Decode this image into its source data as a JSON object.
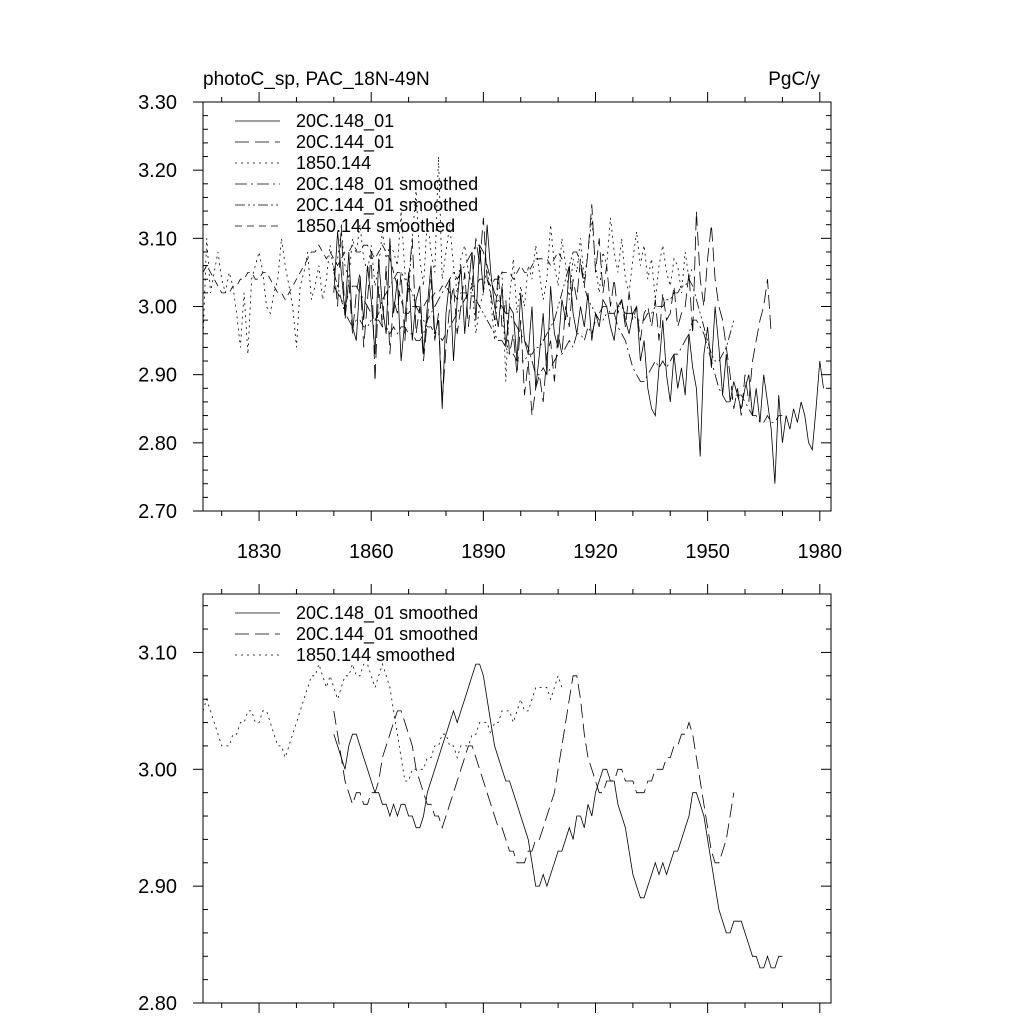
{
  "chart_data": [
    {
      "type": "line",
      "title_left": "photoC_sp, PAC_18N-49N",
      "title_right": "PgC/y",
      "xlim": [
        1815,
        1983
      ],
      "ylim": [
        2.7,
        3.3
      ],
      "xticks": [
        1830,
        1860,
        1890,
        1920,
        1950,
        1980
      ],
      "yticks": [
        2.7,
        2.8,
        2.9,
        3.0,
        3.1,
        3.2,
        3.3
      ],
      "ytick_labels": [
        "2.70",
        "2.80",
        "2.90",
        "3.00",
        "3.10",
        "3.20",
        "3.30"
      ],
      "series": [
        {
          "name": "20C.148_01",
          "style": "solid",
          "x0": 1850,
          "values": [
            3.02,
            3.11,
            3.05,
            2.99,
            3.08,
            2.97,
            2.95,
            3.04,
            2.98,
            3.06,
            3.01,
            2.93,
            3.07,
            3.0,
            2.96,
            3.1,
            2.99,
            3.04,
            2.92,
            2.98,
            3.05,
            2.95,
            3.01,
            3.03,
            2.93,
            3.0,
            3.06,
            2.96,
            2.98,
            2.85,
            2.99,
            3.04,
            2.92,
            3.01,
            3.06,
            2.96,
            3.03,
            3.08,
            2.98,
            3.09,
            3.02,
            3.12,
            3.05,
            3.0,
            2.97,
            3.03,
            2.94,
            3.0,
            2.99,
            2.92,
            3.02,
            2.95,
            2.93,
            3.0,
            2.88,
            2.93,
            2.99,
            2.9,
            3.03,
            2.96,
            2.94,
            3.01,
            2.98,
            3.06,
            2.99,
            2.96,
            3.0,
            2.97,
            3.02,
            2.95,
            2.99,
            2.97,
            3.01,
            3.0,
            2.97,
            2.95,
            3.0,
            3.01,
            2.98,
            2.96,
            2.99,
            3.0,
            2.92,
            2.95,
            2.88,
            2.85,
            2.84,
            2.91,
            2.98,
            2.9,
            2.86,
            2.93,
            2.88,
            2.91,
            2.87,
            2.96,
            2.91,
            2.88,
            2.78,
            2.93,
            2.97,
            2.91,
            3.0,
            2.94,
            2.87,
            2.93,
            2.86,
            2.89,
            2.87,
            2.85,
            2.88,
            2.9,
            2.84,
            2.88,
            2.83,
            2.9,
            2.86,
            2.82,
            2.74,
            2.87,
            2.8,
            2.84,
            2.82,
            2.85,
            2.83,
            2.86,
            2.84,
            2.8,
            2.79,
            2.85,
            2.92,
            2.88
          ]
        },
        {
          "name": "20C.144_01",
          "style": "longdash",
          "x0": 1850,
          "values": [
            3.06,
            3.0,
            3.12,
            2.98,
            3.04,
            2.96,
            3.02,
            3.05,
            2.94,
            3.01,
            3.08,
            2.89,
            3.03,
            2.97,
            3.06,
            2.93,
            3.01,
            2.99,
            3.05,
            2.95,
            3.04,
            3.1,
            2.96,
            3.0,
            2.92,
            2.98,
            3.04,
            2.95,
            2.99,
            2.86,
            2.94,
            3.0,
            3.03,
            2.96,
            3.0,
            3.05,
            2.97,
            3.03,
            3.1,
            3.06,
            3.13,
            3.04,
            3.02,
            2.98,
            3.05,
            2.97,
            3.01,
            2.93,
            2.96,
            2.9,
            2.98,
            2.87,
            2.92,
            2.84,
            2.88,
            2.9,
            2.86,
            2.93,
            2.95,
            2.89,
            2.96,
            2.93,
            3.0,
            2.97,
            3.04,
            3.01,
            3.07,
            3.03,
            3.08,
            3.15,
            3.05,
            3.1,
            3.02,
            3.06,
            3.0,
            3.04,
            2.99,
            3.01,
            2.97,
            3.02,
            2.98,
            3.0,
            2.95,
            2.99,
            3.0,
            2.97,
            3.01,
            2.95,
            3.02,
            2.98,
            2.99,
            3.03,
            2.97,
            2.99,
            3.0,
            3.05,
            2.96,
            3.14,
            3.04,
            3.0,
            3.07,
            3.12,
            3.04,
            3.0,
            2.98,
            2.94,
            2.9,
            2.85,
            2.88,
            2.84,
            2.9,
            2.86,
            2.92,
            2.95,
            2.98,
            3.0,
            3.04,
            2.96
          ]
        },
        {
          "name": "1850.144",
          "style": "dotted",
          "x0": 1815,
          "values": [
            2.95,
            3.1,
            3.02,
            3.05,
            3.08,
            3.04,
            3.02,
            3.05,
            3.03,
            2.99,
            2.94,
            3.02,
            2.93,
            3.04,
            3.06,
            3.08,
            3.05,
            3.0,
            2.99,
            3.02,
            3.04,
            3.1,
            3.06,
            3.03,
            3.0,
            2.94,
            3.03,
            3.05,
            3.08,
            3.01,
            3.03,
            3.06,
            3.01,
            3.04,
            3.09,
            3.05,
            3.07,
            3.11,
            3.06,
            3.04,
            3.1,
            3.08,
            3.12,
            3.07,
            3.05,
            3.09,
            3.03,
            3.06,
            3.11,
            3.07,
            3.09,
            3.08,
            3.06,
            3.14,
            3.05,
            3.02,
            3.1,
            3.17,
            3.07,
            3.03,
            3.13,
            3.08,
            3.05,
            3.22,
            3.04,
            3.08,
            3.12,
            3.06,
            3.02,
            3.07,
            3.09,
            3.05,
            3.03,
            2.96,
            3.0,
            3.02,
            3.06,
            3.01,
            2.95,
            3.04,
            3.05,
            2.89,
            3.01,
            3.07,
            2.99,
            3.03,
            3.0,
            3.06,
            3.04,
            3.09,
            3.05,
            3.01,
            3.04,
            3.12,
            3.06,
            3.03,
            3.1,
            3.06,
            3.01,
            3.07,
            3.05,
            3.1,
            3.04,
            3.08,
            3.13,
            3.06,
            3.02,
            3.08,
            3.06,
            3.13,
            3.08,
            3.05,
            3.1,
            3.04,
            3.02,
            3.07,
            3.11,
            3.06,
            3.09,
            3.04,
            3.07,
            3.01,
            3.06,
            3.09,
            3.05,
            3.03,
            3.07,
            3.06,
            3.02,
            3.08,
            3.04,
            3.06
          ]
        },
        {
          "name": "20C.148_01 smoothed",
          "style": "dashdot",
          "x0": 1850,
          "ref": "smooth148"
        },
        {
          "name": "20C.144_01 smoothed",
          "style": "dashdotdot",
          "x0": 1850,
          "ref": "smooth144"
        },
        {
          "name": "1850.144 smoothed",
          "style": "dashdash",
          "x0": 1815,
          "ref": "smooth1850"
        }
      ],
      "legend": [
        "20C.148_01",
        "20C.144_01",
        "1850.144",
        "20C.148_01 smoothed",
        "20C.144_01 smoothed",
        "1850.144 smoothed"
      ],
      "legend_position": "top-left",
      "xtick_labels": [
        "1830",
        "1860",
        "1890",
        "1920",
        "1950",
        "1980"
      ]
    },
    {
      "type": "line",
      "title_left": "",
      "title_right": "",
      "xlim": [
        1815,
        1983
      ],
      "ylim": [
        2.8,
        3.15
      ],
      "xticks": [
        1830,
        1860,
        1890,
        1920,
        1950,
        1980
      ],
      "yticks": [
        2.8,
        2.9,
        3.0,
        3.1
      ],
      "ytick_labels": [
        "2.80",
        "2.90",
        "3.00",
        "3.10"
      ],
      "series": [
        {
          "name": "20C.148_01 smoothed",
          "style": "solid",
          "id": "smooth148",
          "x0": 1850,
          "values": [
            3.03,
            3.02,
            3.01,
            3.0,
            3.02,
            3.03,
            3.03,
            3.02,
            3.01,
            3.0,
            2.99,
            2.98,
            2.98,
            2.97,
            2.97,
            2.96,
            2.97,
            2.96,
            2.97,
            2.97,
            2.96,
            2.96,
            2.95,
            2.95,
            2.96,
            2.98,
            2.99,
            3.0,
            3.01,
            3.02,
            3.03,
            3.04,
            3.05,
            3.04,
            3.05,
            3.06,
            3.07,
            3.08,
            3.09,
            3.09,
            3.08,
            3.06,
            3.04,
            3.02,
            3.01,
            3.0,
            2.99,
            2.99,
            2.98,
            2.97,
            2.96,
            2.95,
            2.94,
            2.92,
            2.9,
            2.9,
            2.91,
            2.9,
            2.91,
            2.92,
            2.93,
            2.93,
            2.94,
            2.95,
            2.94,
            2.96,
            2.96,
            2.95,
            2.97,
            2.96,
            2.98,
            2.99,
            3.0,
            3.0,
            2.99,
            2.99,
            2.97,
            2.96,
            2.95,
            2.93,
            2.91,
            2.9,
            2.89,
            2.89,
            2.9,
            2.91,
            2.92,
            2.91,
            2.92,
            2.91,
            2.92,
            2.93,
            2.93,
            2.94,
            2.95,
            2.96,
            2.98,
            2.98,
            2.97,
            2.96,
            2.94,
            2.92,
            2.9,
            2.88,
            2.87,
            2.86,
            2.86,
            2.87,
            2.87,
            2.87,
            2.86,
            2.85,
            2.84,
            2.84,
            2.83,
            2.83,
            2.84,
            2.83,
            2.83,
            2.84,
            2.84
          ]
        },
        {
          "name": "20C.144_01 smoothed",
          "style": "longdash",
          "id": "smooth144",
          "x0": 1850,
          "values": [
            3.05,
            3.03,
            3.01,
            2.99,
            2.98,
            2.97,
            2.98,
            2.98,
            2.97,
            2.97,
            2.98,
            2.98,
            2.99,
            3.01,
            3.02,
            3.03,
            3.04,
            3.05,
            3.05,
            3.04,
            3.03,
            3.02,
            3.0,
            2.99,
            2.98,
            2.97,
            2.97,
            2.96,
            2.96,
            2.95,
            2.96,
            2.97,
            2.98,
            2.99,
            3.0,
            3.01,
            3.02,
            3.02,
            3.01,
            3.0,
            2.99,
            2.98,
            2.97,
            2.96,
            2.95,
            2.95,
            2.94,
            2.93,
            2.93,
            2.92,
            2.92,
            2.92,
            2.93,
            2.93,
            2.94,
            2.94,
            2.95,
            2.96,
            2.97,
            2.98,
            3.0,
            3.02,
            3.04,
            3.06,
            3.08,
            3.08,
            3.06,
            3.03,
            3.01,
            3.0,
            2.99,
            2.98,
            2.98,
            2.99,
            2.99,
            2.99,
            3.0,
            3.0,
            2.99,
            2.99,
            2.99,
            2.98,
            2.98,
            2.98,
            2.99,
            2.99,
            3.0,
            3.0,
            3.0,
            3.01,
            3.01,
            3.02,
            3.02,
            3.03,
            3.03,
            3.04,
            3.03,
            3.01,
            2.99,
            2.97,
            2.95,
            2.93,
            2.92,
            2.92,
            2.93,
            2.94,
            2.96,
            2.98
          ]
        },
        {
          "name": "1850.144 smoothed",
          "style": "dotted",
          "id": "smooth1850",
          "x0": 1815,
          "values": [
            3.05,
            3.06,
            3.05,
            3.04,
            3.03,
            3.02,
            3.02,
            3.02,
            3.03,
            3.03,
            3.04,
            3.04,
            3.05,
            3.05,
            3.04,
            3.04,
            3.05,
            3.05,
            3.04,
            3.03,
            3.02,
            3.02,
            3.01,
            3.02,
            3.03,
            3.04,
            3.05,
            3.06,
            3.07,
            3.08,
            3.08,
            3.09,
            3.08,
            3.07,
            3.08,
            3.07,
            3.06,
            3.07,
            3.08,
            3.08,
            3.09,
            3.08,
            3.08,
            3.09,
            3.09,
            3.08,
            3.07,
            3.08,
            3.09,
            3.08,
            3.07,
            3.05,
            3.03,
            3.01,
            2.99,
            2.99,
            3.0,
            3.0,
            3.0,
            3.0,
            3.01,
            3.01,
            3.02,
            3.02,
            3.03,
            3.03,
            3.02,
            3.02,
            3.01,
            3.02,
            3.02,
            3.02,
            3.03,
            3.03,
            3.04,
            3.04,
            3.04,
            3.03,
            3.04,
            3.04,
            3.05,
            3.05,
            3.05,
            3.04,
            3.05,
            3.06,
            3.05,
            3.05,
            3.06,
            3.07,
            3.07,
            3.07,
            3.07,
            3.06,
            3.07,
            3.08,
            3.07,
            3.07
          ]
        }
      ],
      "legend": [
        "20C.148_01 smoothed",
        "20C.144_01 smoothed",
        "1850.144 smoothed"
      ],
      "legend_position": "top-left",
      "xtick_labels": []
    }
  ]
}
